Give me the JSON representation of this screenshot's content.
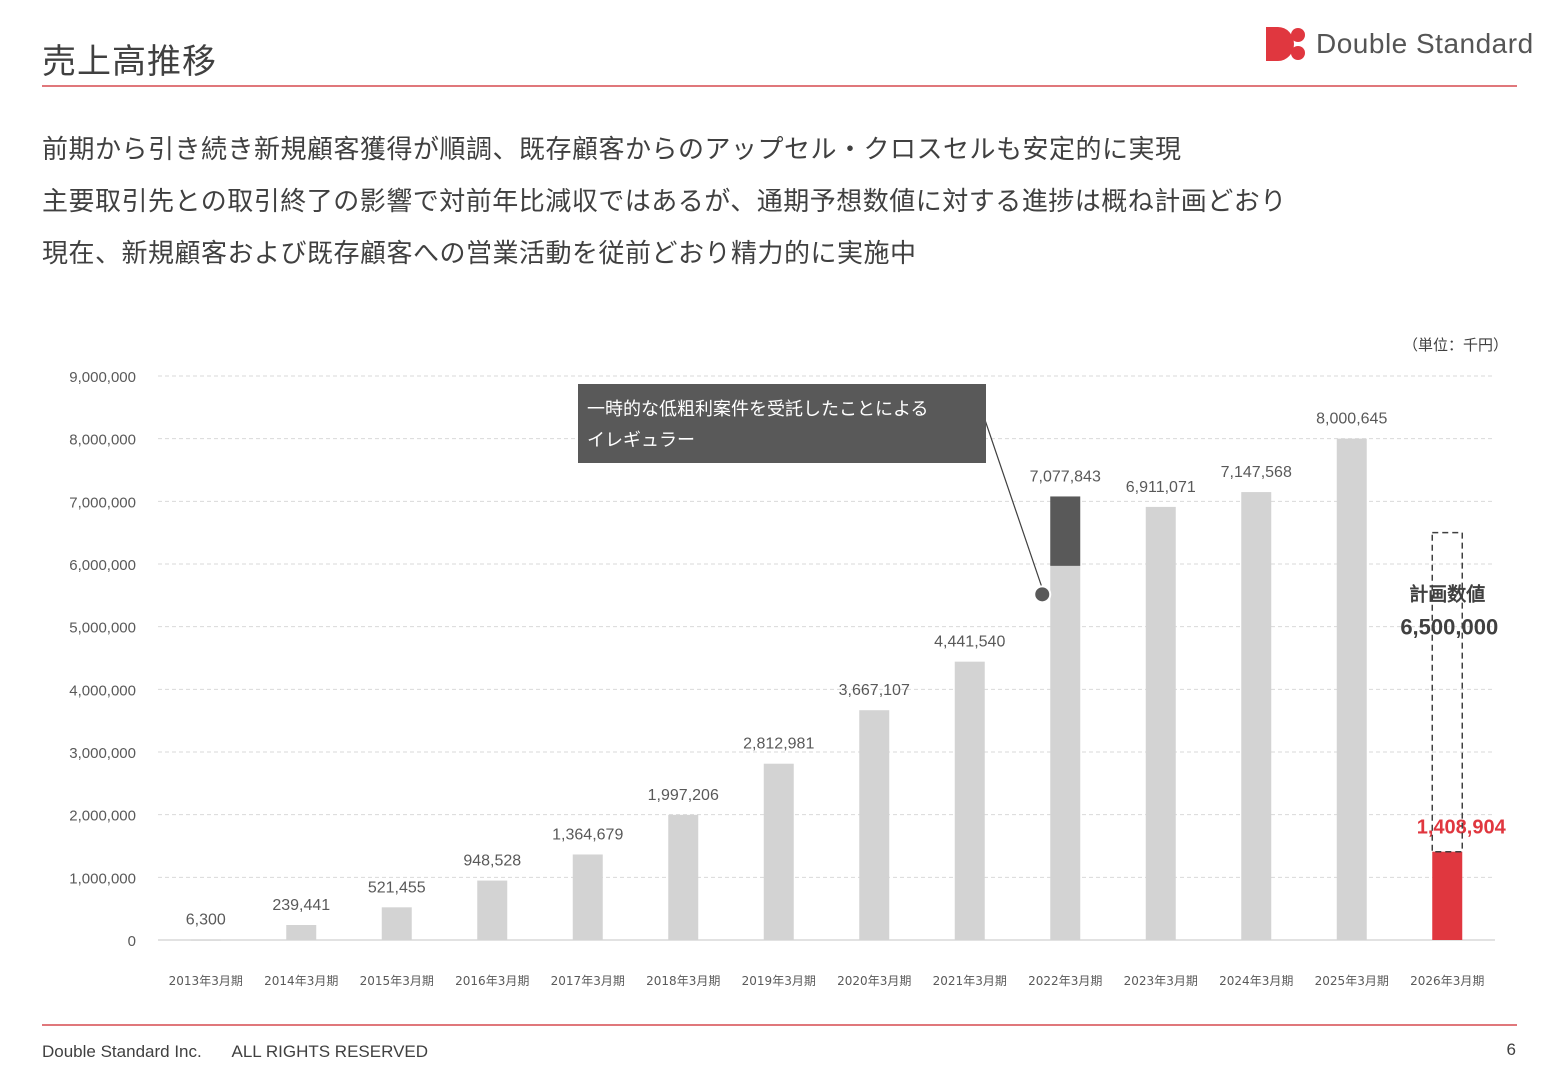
{
  "header": {
    "title": "売上高推移",
    "logo_text": "Double Standard",
    "accent_color": "#e0373f"
  },
  "bullets": [
    "前期から引き続き新規顧客獲得が順調、既存顧客からのアップセル・クロスセルも安定的に実現",
    "主要取引先との取引終了の影響で対前年比減収ではあるが、通期予想数値に対する進捗は概ね計画どおり",
    "現在、新規顧客および既存顧客への営業活動を従前どおり精力的に実施中"
  ],
  "chart_data": {
    "type": "bar",
    "unit_label": "（単位：千円）",
    "categories": [
      "2013年3月期",
      "2014年3月期",
      "2015年3月期",
      "2016年3月期",
      "2017年3月期",
      "2018年3月期",
      "2019年3月期",
      "2020年3月期",
      "2021年3月期",
      "2022年3月期",
      "2023年3月期",
      "2024年3月期",
      "2025年3月期",
      "2026年3月期"
    ],
    "values": [
      6300,
      239441,
      521455,
      948528,
      1364679,
      1997206,
      2812981,
      3667107,
      4441540,
      7077843,
      6911071,
      7147568,
      8000645,
      1408904
    ],
    "value_labels": [
      "6,300",
      "239,441",
      "521,455",
      "948,528",
      "1,364,679",
      "1,997,206",
      "2,812,981",
      "3,667,107",
      "4,441,540",
      "7,077,843",
      "6,911,071",
      "7,147,568",
      "8,000,645",
      "1,408,904"
    ],
    "irregular": {
      "category_index": 9,
      "base_value": 5970000,
      "color": "#595959"
    },
    "plan": {
      "category_index": 13,
      "value": 6500000,
      "label": "計画数値",
      "value_label": "6,500,000"
    },
    "callout_lines": [
      "一時的な低粗利案件を受託したことによる",
      "イレギュラー"
    ],
    "yticks": [
      0,
      1000000,
      2000000,
      3000000,
      4000000,
      5000000,
      6000000,
      7000000,
      8000000,
      9000000
    ],
    "ytick_labels": [
      "0",
      "1,000,000",
      "2,000,000",
      "3,000,000",
      "4,000,000",
      "5,000,000",
      "6,000,000",
      "7,000,000",
      "8,000,000",
      "9,000,000"
    ],
    "ylim": [
      0,
      9000000
    ],
    "grid": true,
    "bar_color": "#d3d3d3",
    "highlight_color": "#e0373f"
  },
  "footer": {
    "company": "Double Standard Inc.",
    "rights": "ALL RIGHTS RESERVED",
    "page": "6"
  }
}
